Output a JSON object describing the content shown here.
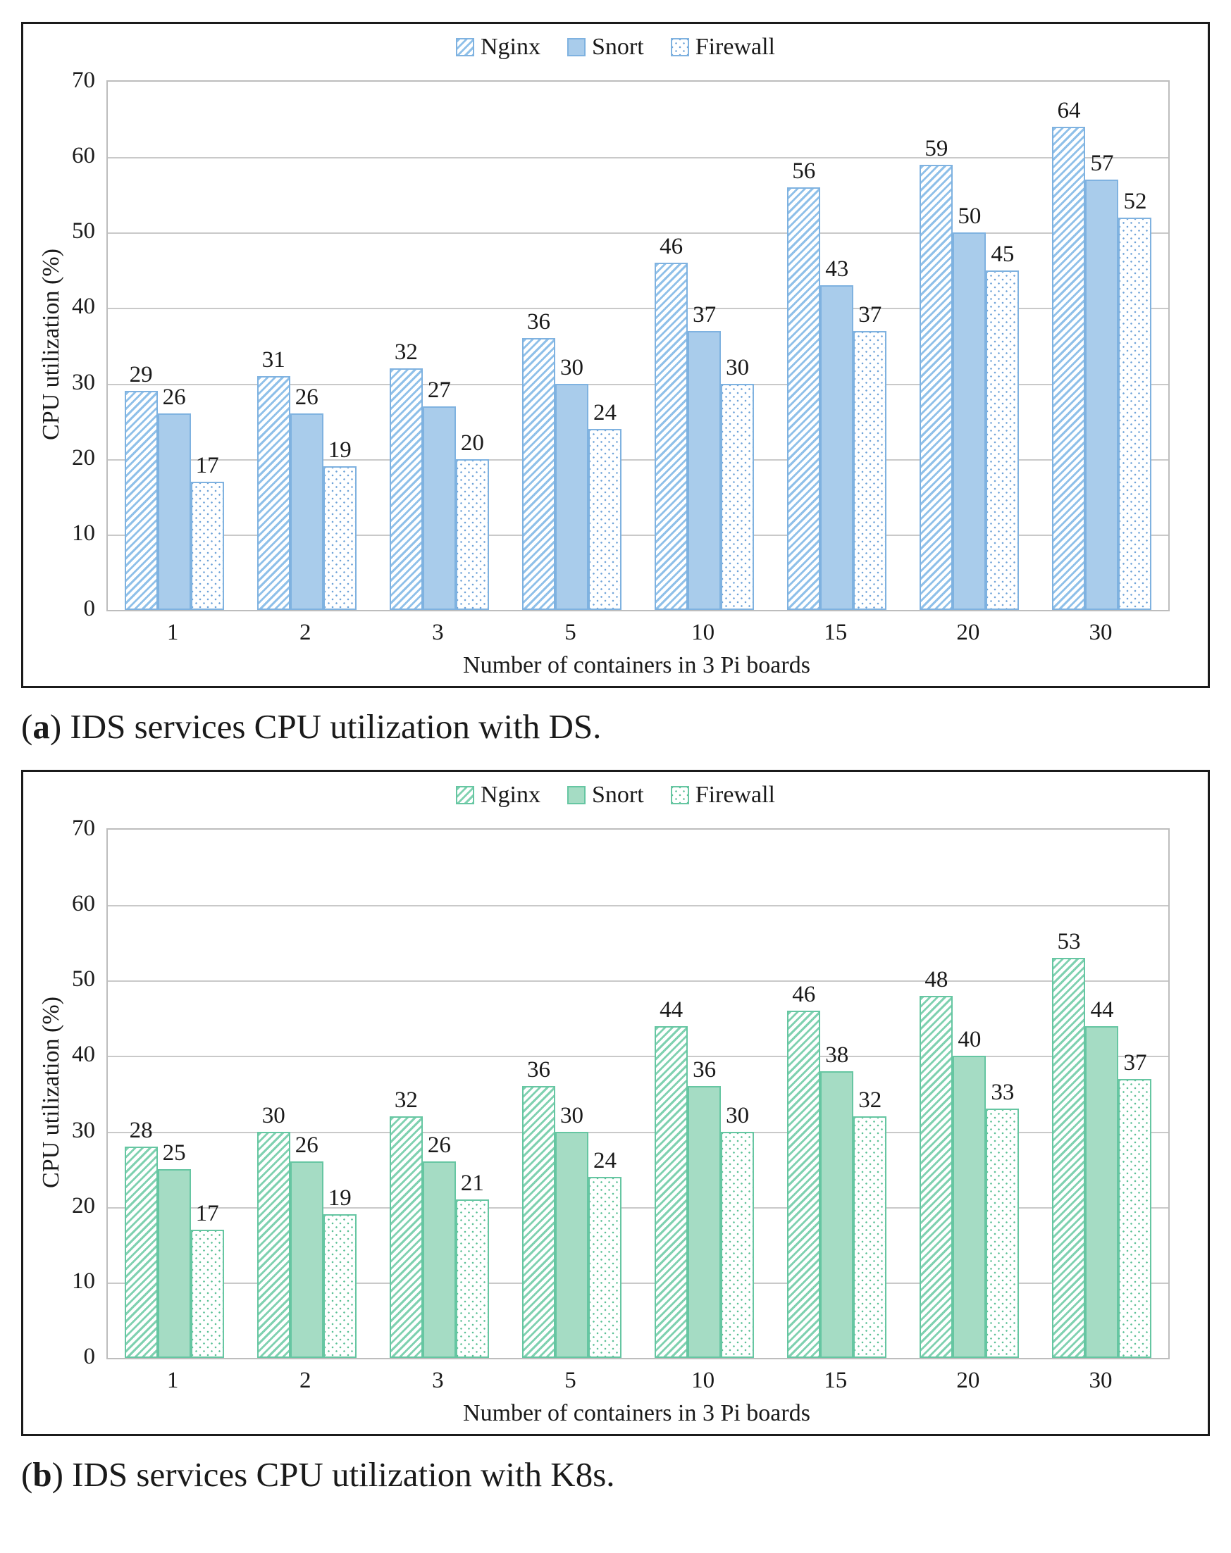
{
  "chart_data": [
    {
      "type": "bar",
      "title": "",
      "categories": [
        "1",
        "2",
        "3",
        "5",
        "10",
        "15",
        "20",
        "30"
      ],
      "series": [
        {
          "name": "Nginx",
          "pattern": "hatch",
          "values": [
            29,
            31,
            32,
            36,
            46,
            56,
            59,
            64
          ]
        },
        {
          "name": "Snort",
          "pattern": "solid",
          "values": [
            26,
            26,
            27,
            30,
            37,
            43,
            50,
            57
          ]
        },
        {
          "name": "Firewall",
          "pattern": "dots",
          "values": [
            17,
            19,
            20,
            24,
            30,
            37,
            45,
            52
          ]
        }
      ],
      "xlabel": "Number of containers in 3 Pi boards",
      "ylabel": "CPU utilization (%)",
      "ylim": [
        0,
        70
      ],
      "ytick_step": 10,
      "grid": true,
      "legend_position": "top-center",
      "colors": {
        "stroke": "#7fb2e0",
        "solid_fill": "#a9cceb",
        "hatch_line": "#8fc0e9",
        "dot": "#6fa3d8",
        "grid": "#c9c9c9",
        "text": "#1a1a1a"
      }
    },
    {
      "type": "bar",
      "title": "",
      "categories": [
        "1",
        "2",
        "3",
        "5",
        "10",
        "15",
        "20",
        "30"
      ],
      "series": [
        {
          "name": "Nginx",
          "pattern": "hatch",
          "values": [
            28,
            30,
            32,
            36,
            44,
            46,
            48,
            53
          ]
        },
        {
          "name": "Snort",
          "pattern": "solid",
          "values": [
            25,
            26,
            26,
            30,
            36,
            38,
            40,
            44
          ]
        },
        {
          "name": "Firewall",
          "pattern": "dots",
          "values": [
            17,
            19,
            21,
            24,
            30,
            32,
            33,
            37
          ]
        }
      ],
      "xlabel": "Number of containers in 3 Pi boards",
      "ylabel": "CPU utilization (%)",
      "ylim": [
        0,
        70
      ],
      "ytick_step": 10,
      "grid": true,
      "legend_position": "top-center",
      "colors": {
        "stroke": "#66c6a2",
        "solid_fill": "#a5dcc4",
        "hatch_line": "#7fd1b0",
        "dot": "#5cc096",
        "grid": "#c9c9c9",
        "text": "#1a1a1a"
      }
    }
  ],
  "captions": [
    {
      "open": "(",
      "letter": "a",
      "close": ")",
      "text": "IDS services CPU utilization with DS."
    },
    {
      "open": "(",
      "letter": "b",
      "close": ")",
      "text": "IDS services CPU utilization with K8s."
    }
  ]
}
